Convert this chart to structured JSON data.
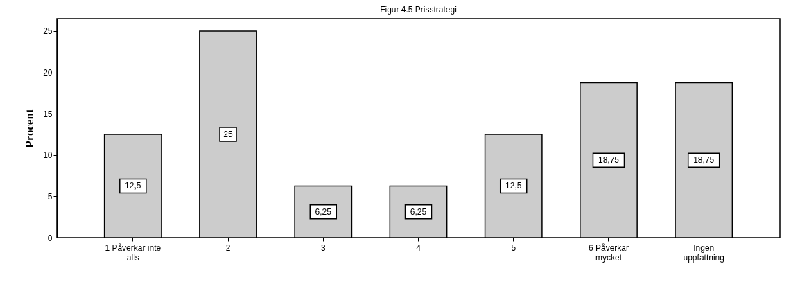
{
  "chart_data": {
    "type": "bar",
    "title": "Figur 4.5 Prisstrategi",
    "ylabel": "Procent",
    "categories": [
      "1 Påverkar inte\nalls",
      "2",
      "3",
      "4",
      "5",
      "6 Påverkar\nmycket",
      "Ingen\nuppfattning"
    ],
    "values": [
      12.5,
      25,
      6.25,
      6.25,
      12.5,
      18.75,
      18.75
    ],
    "value_labels": [
      "12,5",
      "25",
      "6,25",
      "6,25",
      "12,5",
      "18,75",
      "18,75"
    ],
    "color": "#cccccc",
    "ylim": [
      0,
      26.5
    ],
    "yticks": [
      0,
      5,
      10,
      15,
      20,
      25
    ],
    "grid": false
  }
}
